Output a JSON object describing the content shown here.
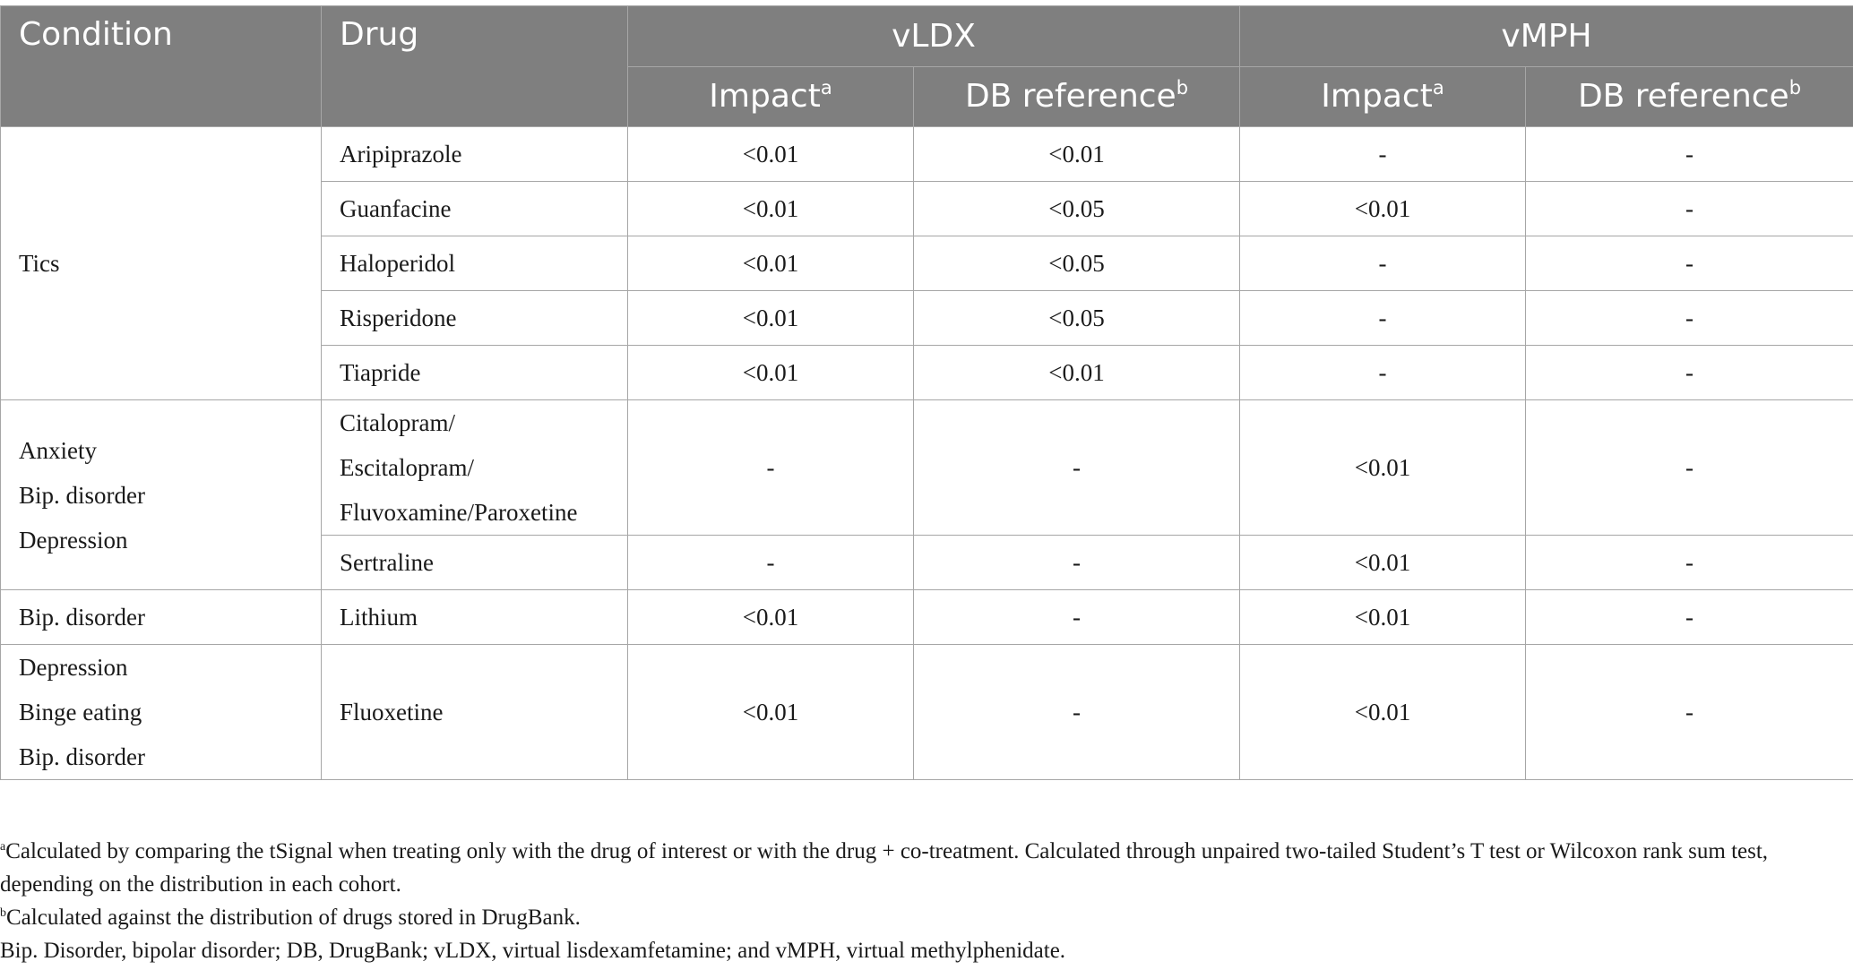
{
  "table": {
    "headers": {
      "condition": "Condition",
      "drug": "Drug",
      "group1": "vLDX",
      "group2": "vMPH",
      "impact": "Impact",
      "impact_sup": "a",
      "db_ref": "DB reference",
      "db_ref_sup": "b"
    },
    "rows": [
      {
        "drug": "Aripiprazole",
        "ldx_impact": "<0.01",
        "ldx_db": "<0.01",
        "mph_impact": "-",
        "mph_db": "-"
      },
      {
        "drug": "Guanfacine",
        "ldx_impact": "<0.01",
        "ldx_db": "<0.05",
        "mph_impact": "<0.01",
        "mph_db": "-"
      },
      {
        "drug": "Haloperidol",
        "ldx_impact": "<0.01",
        "ldx_db": "<0.05",
        "mph_impact": "-",
        "mph_db": "-"
      },
      {
        "drug": "Risperidone",
        "ldx_impact": "<0.01",
        "ldx_db": "<0.05",
        "mph_impact": "-",
        "mph_db": "-"
      },
      {
        "drug": "Tiapride",
        "ldx_impact": "<0.01",
        "ldx_db": "<0.01",
        "mph_impact": "-",
        "mph_db": "-"
      },
      {
        "drug_lines": [
          "Citalopram/",
          "Escitalopram/",
          "Fluvoxamine/Paroxetine"
        ],
        "ldx_impact": "-",
        "ldx_db": "-",
        "mph_impact": "<0.01",
        "mph_db": "-"
      },
      {
        "drug": "Sertraline",
        "ldx_impact": "-",
        "ldx_db": "-",
        "mph_impact": "<0.01",
        "mph_db": "-"
      },
      {
        "drug": "Lithium",
        "ldx_impact": "<0.01",
        "ldx_db": "-",
        "mph_impact": "<0.01",
        "mph_db": "-"
      },
      {
        "drug": "Fluoxetine",
        "ldx_impact": "<0.01",
        "ldx_db": "-",
        "mph_impact": "<0.01",
        "mph_db": "-"
      }
    ],
    "conditions": [
      {
        "lines": [
          "Tics"
        ]
      },
      {
        "lines": [
          "Anxiety",
          "Bip. disorder",
          "Depression"
        ]
      },
      {
        "lines": [
          "Bip. disorder"
        ]
      },
      {
        "lines": [
          "Depression",
          "Binge eating",
          "Bip. disorder"
        ]
      }
    ]
  },
  "footnotes": {
    "a_marker": "a",
    "a_text": "Calculated by comparing the tSignal when treating only with the drug of interest or with the drug + co-treatment. Calculated through unpaired two-tailed Student’s T test or Wilcoxon rank sum test, depending on the distribution in each cohort.",
    "b_marker": "b",
    "b_text": "Calculated against the distribution of drugs stored in DrugBank.",
    "abbreviations": "Bip. Disorder, bipolar disorder; DB, DrugBank; vLDX, virtual lisdexamfetamine; and vMPH, virtual methylphenidate."
  }
}
